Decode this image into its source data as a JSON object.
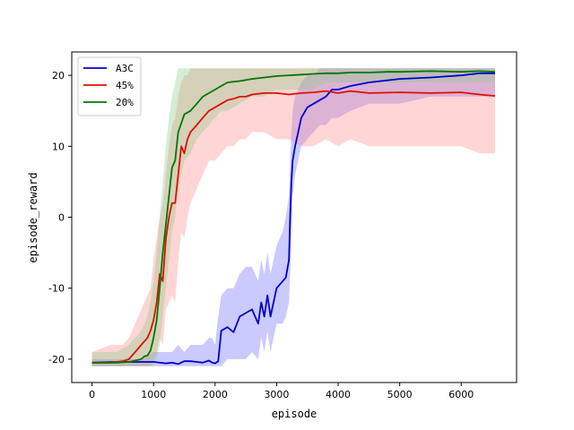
{
  "chart_data": {
    "type": "line",
    "title": "",
    "xlabel": "episode",
    "ylabel": "episode_reward",
    "xlim": [
      -330,
      6900
    ],
    "ylim": [
      -23.3,
      23.3
    ],
    "xticks": [
      0,
      1000,
      2000,
      3000,
      4000,
      5000,
      6000
    ],
    "yticks": [
      -20,
      -10,
      0,
      10,
      20
    ],
    "grid": false,
    "legend_position": "top-left",
    "series": [
      {
        "name": "A3C",
        "color": "#0000cc",
        "band_color": "#6666ff",
        "x": [
          0,
          400,
          800,
          1000,
          1200,
          1300,
          1400,
          1500,
          1600,
          1700,
          1800,
          1900,
          1950,
          2000,
          2050,
          2100,
          2200,
          2300,
          2400,
          2500,
          2600,
          2700,
          2750,
          2800,
          2850,
          2900,
          3000,
          3100,
          3150,
          3200,
          3220,
          3240,
          3260,
          3300,
          3350,
          3400,
          3500,
          3600,
          3700,
          3800,
          3900,
          4000,
          4200,
          4500,
          5000,
          5500,
          6000,
          6300,
          6550
        ],
        "y": [
          -20.5,
          -20.4,
          -20.4,
          -20.4,
          -20.6,
          -20.5,
          -20.7,
          -20.3,
          -20.3,
          -20.4,
          -20.5,
          -20.2,
          -20.5,
          -20.6,
          -20.3,
          -16,
          -15.5,
          -16.2,
          -14,
          -13.5,
          -13,
          -15,
          -12,
          -14,
          -11,
          -14,
          -10,
          -9,
          -8.5,
          -6,
          0,
          5,
          8,
          10,
          12,
          14,
          15.5,
          16,
          16.5,
          17,
          18,
          18,
          18.5,
          19,
          19.5,
          19.7,
          20,
          20.3,
          20.3
        ],
        "band_low": [
          -21,
          -21,
          -21,
          -21,
          -21,
          -21,
          -21,
          -21,
          -21,
          -21,
          -21,
          -21,
          -21,
          -21,
          -21,
          -21,
          -20,
          -20,
          -20,
          -20,
          -19,
          -20,
          -17,
          -19,
          -16,
          -19,
          -15,
          -15,
          -14,
          -12,
          -8,
          -3,
          3,
          6,
          8,
          10,
          11,
          12,
          13,
          13,
          14,
          14,
          15,
          16,
          16,
          17,
          17,
          17,
          17
        ],
        "band_high": [
          -20,
          -20,
          -20,
          -19,
          -19,
          -19,
          -18,
          -19,
          -18,
          -18,
          -18,
          -17,
          -17,
          -18,
          -14,
          -11,
          -10,
          -10,
          -8,
          -7,
          -7,
          -9,
          -6,
          -8,
          -5,
          -8,
          -4,
          -2,
          0,
          3,
          8,
          12,
          15,
          17,
          18,
          19,
          20,
          20,
          21,
          21,
          21,
          21,
          21,
          21,
          21,
          21,
          21,
          21,
          21
        ]
      },
      {
        "name": "45%",
        "color": "#dd1100",
        "band_color": "#ff8888",
        "x": [
          0,
          300,
          500,
          600,
          700,
          800,
          900,
          950,
          1000,
          1050,
          1100,
          1150,
          1200,
          1250,
          1300,
          1350,
          1400,
          1450,
          1500,
          1550,
          1600,
          1700,
          1800,
          1900,
          2000,
          2100,
          2200,
          2300,
          2400,
          2500,
          2600,
          2800,
          3000,
          3200,
          3400,
          3600,
          3800,
          4000,
          4200,
          4500,
          5000,
          5500,
          6000,
          6300,
          6550
        ],
        "y": [
          -20.5,
          -20.5,
          -20.3,
          -20,
          -19,
          -18,
          -17,
          -16,
          -14.5,
          -12,
          -8,
          -9,
          -3,
          0,
          2,
          2,
          6,
          10,
          9,
          11,
          12,
          13,
          14,
          15,
          15.5,
          16,
          16.5,
          16.7,
          17,
          17,
          17.3,
          17.5,
          17.5,
          17.3,
          17.5,
          17.6,
          17.8,
          17.5,
          17.8,
          17.5,
          17.6,
          17.5,
          17.6,
          17.3,
          17.1
        ],
        "band_low": [
          -21,
          -21,
          -21,
          -21,
          -21,
          -21,
          -21,
          -21,
          -20,
          -19,
          -17,
          -18,
          -13,
          -12,
          -11,
          -12,
          -6,
          -2,
          -3,
          0,
          2,
          4,
          6,
          8,
          8,
          9,
          10,
          10,
          11,
          11,
          12,
          12,
          11,
          11,
          10,
          10,
          11,
          10,
          11,
          10,
          10,
          10,
          10,
          9,
          9
        ],
        "band_high": [
          -19,
          -18,
          -18,
          -17,
          -15,
          -13,
          -11,
          -10,
          -6,
          -3,
          0,
          2,
          6,
          10,
          13,
          14,
          17,
          19,
          20,
          20,
          21,
          21,
          21,
          21,
          21,
          21,
          21,
          21,
          21,
          21,
          21,
          21,
          21,
          21,
          21,
          21,
          21,
          21,
          21,
          21,
          21,
          21,
          21,
          21,
          21
        ]
      },
      {
        "name": "20%",
        "color": "#007700",
        "band_color": "#88cc88",
        "x": [
          0,
          400,
          600,
          700,
          800,
          850,
          900,
          950,
          1000,
          1050,
          1100,
          1150,
          1200,
          1250,
          1300,
          1350,
          1400,
          1500,
          1600,
          1700,
          1800,
          1900,
          2000,
          2100,
          2200,
          2400,
          2600,
          2800,
          3000,
          3200,
          3400,
          3600,
          3800,
          4000,
          4200,
          4500,
          4800,
          5000,
          5500,
          6000,
          6300,
          6550
        ],
        "y": [
          -20.5,
          -20.5,
          -20.4,
          -20.2,
          -20,
          -19.6,
          -19.5,
          -18.8,
          -17,
          -14.5,
          -10,
          -5,
          -1,
          3,
          7,
          8,
          12,
          14.5,
          15,
          16,
          17,
          17.5,
          18,
          18.5,
          19,
          19.2,
          19.5,
          19.7,
          19.9,
          20,
          20.1,
          20.2,
          20.3,
          20.3,
          20.4,
          20.4,
          20.5,
          20.5,
          20.6,
          20.5,
          20.6,
          20.5
        ],
        "band_low": [
          -21,
          -21,
          -21,
          -21,
          -21,
          -21,
          -21,
          -21,
          -21,
          -20,
          -18,
          -14,
          -10,
          -6,
          -2,
          0,
          4,
          8,
          9,
          11,
          12,
          13,
          14,
          15,
          15,
          16,
          17,
          17,
          18,
          18,
          18,
          18,
          19,
          19,
          19,
          19,
          19,
          19,
          19,
          19,
          19,
          19
        ],
        "band_high": [
          -19,
          -19,
          -18,
          -17,
          -16,
          -15,
          -14,
          -12,
          -9,
          -5,
          0,
          5,
          10,
          14,
          17,
          19,
          21,
          21,
          21,
          21,
          21,
          21,
          21,
          21,
          21,
          21,
          21,
          21,
          21,
          21,
          21,
          21,
          21,
          21,
          21,
          21,
          21,
          21,
          21,
          21,
          21,
          21
        ]
      }
    ]
  }
}
